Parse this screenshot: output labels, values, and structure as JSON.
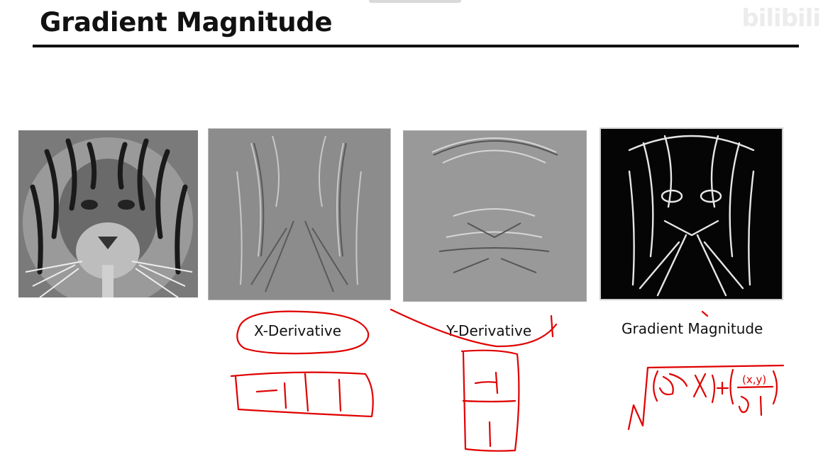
{
  "slide": {
    "title": "Gradient Magnitude",
    "watermark": "bilibili"
  },
  "panels": [
    {
      "id": "original",
      "caption": ""
    },
    {
      "id": "x-derivative",
      "caption": "X-Derivative"
    },
    {
      "id": "y-derivative",
      "caption": "Y-Derivative"
    },
    {
      "id": "gradient-magnitude",
      "caption": "Gradient Magnitude"
    }
  ],
  "annotations": {
    "x_kernel": [
      "−1",
      "1"
    ],
    "y_kernel": [
      "−1",
      "1"
    ],
    "formula_fragment": "(x,y)",
    "ink_color": "#e00000"
  }
}
